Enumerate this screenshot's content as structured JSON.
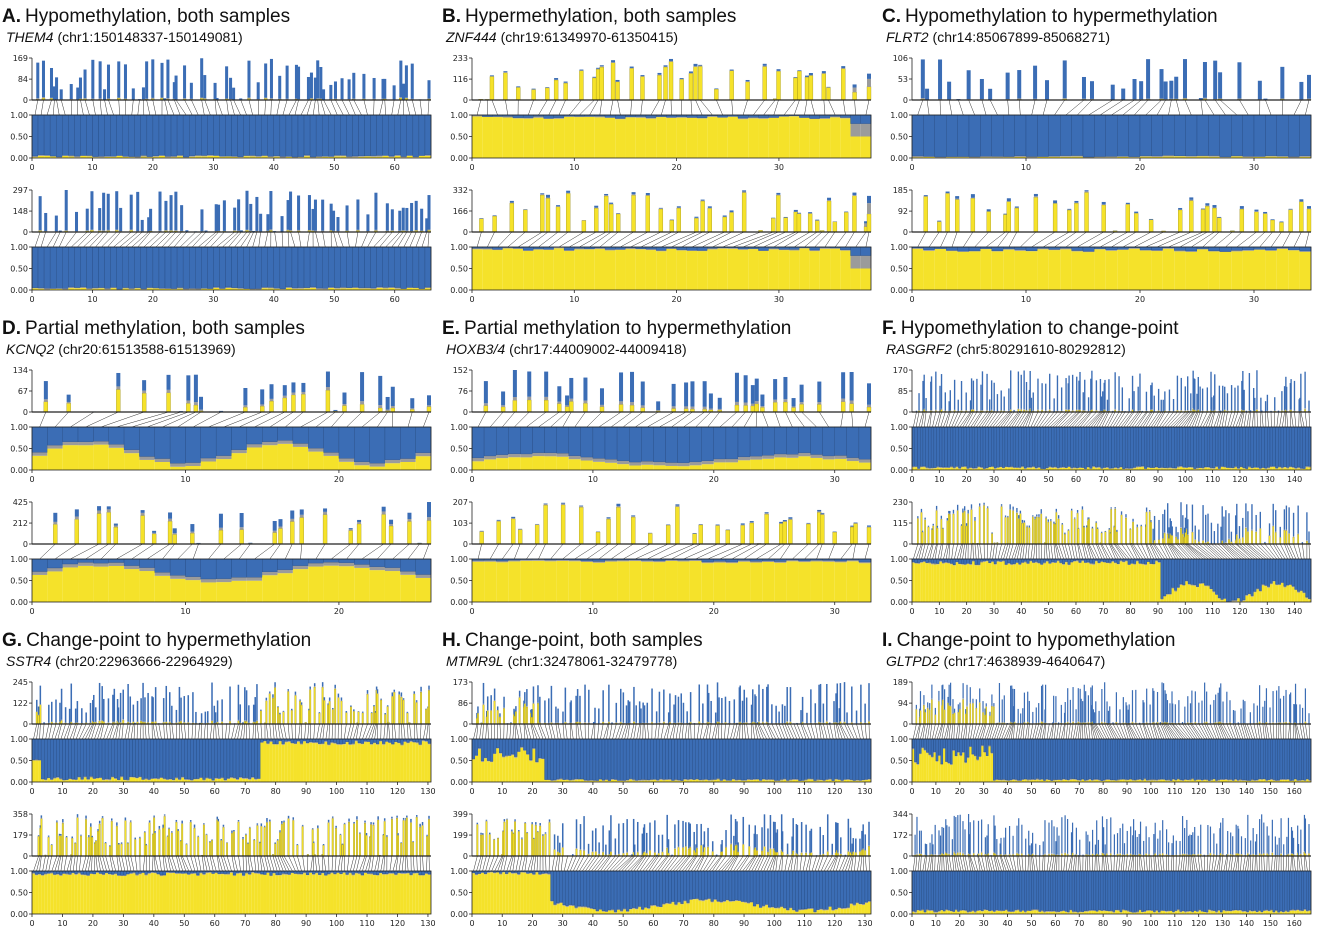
{
  "colors": {
    "blue": "#3b6db5",
    "yellow": "#f5e22a",
    "gray": "#9b9b9b",
    "axis": "#222222"
  },
  "chart_data": [
    {
      "type": "bar",
      "panel_label": "A.",
      "title": "Hypomethylation, both samples",
      "gene": "THEM4",
      "coords": "(chr1:150148337-150149081)",
      "n_sites": 66,
      "xticks": [
        0,
        10,
        20,
        30,
        40,
        50,
        60
      ],
      "profile": "hypo",
      "samples": [
        {
          "count_max": 169,
          "count_ticks": [
            0,
            84,
            169
          ]
        },
        {
          "count_max": 297,
          "count_ticks": [
            0,
            148,
            297
          ]
        }
      ]
    },
    {
      "type": "bar",
      "panel_label": "B.",
      "title": "Hypermethylation, both samples",
      "gene": "ZNF444",
      "coords": "(chr19:61349970-61350415)",
      "n_sites": 39,
      "xticks": [
        0,
        10,
        20,
        30
      ],
      "profile": "hyper",
      "samples": [
        {
          "count_max": 233,
          "count_ticks": [
            0,
            116,
            233
          ]
        },
        {
          "count_max": 332,
          "count_ticks": [
            0,
            166,
            332
          ]
        }
      ]
    },
    {
      "type": "bar",
      "panel_label": "C.",
      "title": "Hypomethylation to hypermethylation",
      "gene": "FLRT2",
      "coords": "(chr14:85067899-85068271)",
      "n_sites": 35,
      "xticks": [
        0,
        10,
        20,
        30
      ],
      "profile": "hypo-hyper",
      "samples": [
        {
          "count_max": 106,
          "count_ticks": [
            0,
            53,
            106
          ]
        },
        {
          "count_max": 185,
          "count_ticks": [
            0,
            92,
            185
          ]
        }
      ]
    },
    {
      "type": "bar",
      "panel_label": "D.",
      "title": "Partial methylation, both samples",
      "gene": "KCNQ2",
      "coords": "(chr20:61513588-61513969)",
      "n_sites": 26,
      "xticks": [
        0,
        10,
        20
      ],
      "profile": "partial",
      "samples": [
        {
          "count_max": 134,
          "count_ticks": [
            0,
            67,
            134
          ]
        },
        {
          "count_max": 425,
          "count_ticks": [
            0,
            212,
            425
          ]
        }
      ]
    },
    {
      "type": "bar",
      "panel_label": "E.",
      "title": "Partial methylation to hypermethylation",
      "gene": "HOXB3/4",
      "coords": "(chr17:44009002-44009418)",
      "n_sites": 33,
      "xticks": [
        0,
        10,
        20,
        30
      ],
      "profile": "partial-hyper",
      "samples": [
        {
          "count_max": 152,
          "count_ticks": [
            0,
            76,
            152
          ]
        },
        {
          "count_max": 207,
          "count_ticks": [
            0,
            103,
            207
          ]
        }
      ]
    },
    {
      "type": "bar",
      "panel_label": "F.",
      "title": "Hypomethylation to change-point",
      "gene": "RASGRF2",
      "coords": "(chr5:80291610-80292812)",
      "n_sites": 146,
      "xticks": [
        0,
        10,
        20,
        30,
        40,
        50,
        60,
        70,
        80,
        90,
        100,
        110,
        120,
        130,
        140
      ],
      "profile": "hypo-cp",
      "samples": [
        {
          "count_max": 170,
          "count_ticks": [
            0,
            85,
            170
          ]
        },
        {
          "count_max": 230,
          "count_ticks": [
            0,
            115,
            230
          ]
        }
      ]
    },
    {
      "type": "bar",
      "panel_label": "G.",
      "title": "Change-point to hypermethylation",
      "gene": "SSTR4",
      "coords": "(chr20:22963666-22964929)",
      "n_sites": 131,
      "xticks": [
        0,
        10,
        20,
        30,
        40,
        50,
        60,
        70,
        80,
        90,
        100,
        110,
        120,
        130
      ],
      "profile": "cp-hyper",
      "samples": [
        {
          "count_max": 245,
          "count_ticks": [
            0,
            122,
            245
          ]
        },
        {
          "count_max": 358,
          "count_ticks": [
            0,
            179,
            358
          ]
        }
      ]
    },
    {
      "type": "bar",
      "panel_label": "H.",
      "title": "Change-point, both samples",
      "gene": "MTMR9L",
      "coords": "(chr1:32478061-32479778)",
      "n_sites": 132,
      "xticks": [
        0,
        10,
        20,
        30,
        40,
        50,
        60,
        70,
        80,
        90,
        100,
        110,
        120,
        130
      ],
      "profile": "cp-cp",
      "samples": [
        {
          "count_max": 173,
          "count_ticks": [
            0,
            86,
            173
          ]
        },
        {
          "count_max": 399,
          "count_ticks": [
            0,
            199,
            399
          ]
        }
      ]
    },
    {
      "type": "bar",
      "panel_label": "I.",
      "title": "Change-point to hypomethylation",
      "gene": "GLTPD2",
      "coords": "(chr17:4638939-4640647)",
      "n_sites": 167,
      "xticks": [
        0,
        10,
        20,
        30,
        40,
        50,
        60,
        70,
        80,
        90,
        100,
        110,
        120,
        130,
        140,
        150,
        160
      ],
      "profile": "cp-hypo",
      "samples": [
        {
          "count_max": 189,
          "count_ticks": [
            0,
            94,
            189
          ]
        },
        {
          "count_max": 344,
          "count_ticks": [
            0,
            172,
            344
          ]
        }
      ]
    }
  ],
  "shared_axes": {
    "fraction_ticks": [
      "0.00",
      "0.50",
      "1.00"
    ]
  }
}
